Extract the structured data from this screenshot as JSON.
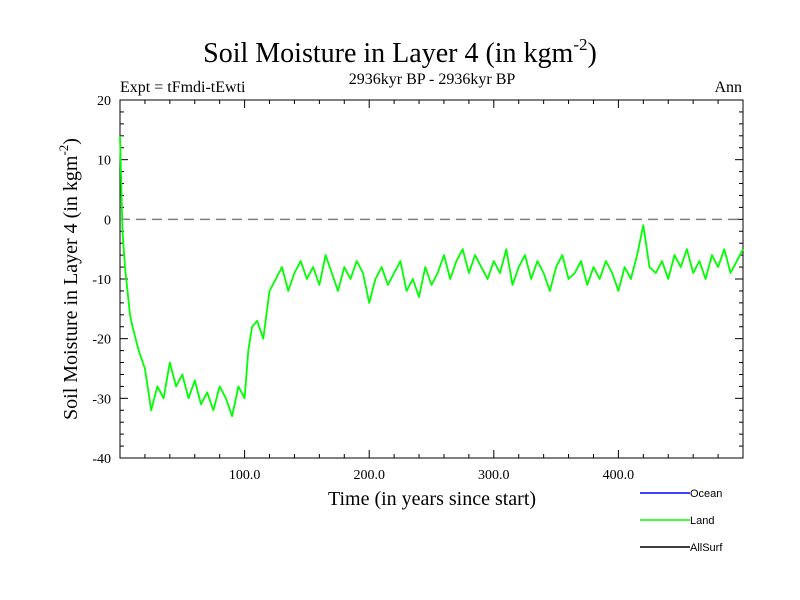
{
  "chart_data": {
    "type": "line",
    "title": "Soil Moisture in Layer 4 (in kgm",
    "title_sup": "-2",
    "title_close": ")",
    "subtitle_left": "Expt = tFmdi-tEwti",
    "subtitle_center": "2936kyr BP - 2936kyr BP",
    "subtitle_right": "Ann",
    "xlabel": "Time (in years since start)",
    "ylabel": "Soil Moisture in Layer 4 (in kgm",
    "ylabel_sup": "-2",
    "ylabel_close": ")",
    "xlim": [
      0,
      500
    ],
    "ylim": [
      -40,
      20
    ],
    "x_ticks": [
      100,
      200,
      300,
      400
    ],
    "x_tick_labels": [
      "100.0",
      "200.0",
      "300.0",
      "400.0"
    ],
    "y_ticks": [
      -40,
      -30,
      -20,
      -10,
      0,
      10,
      20
    ],
    "y_tick_labels": [
      "-40",
      "-30",
      "-20",
      "-10",
      "0",
      "10",
      "20"
    ],
    "reference_line": {
      "y": 0,
      "style": "dashed",
      "color": "#808080"
    },
    "legend": [
      {
        "name": "Ocean",
        "color": "#0000ff"
      },
      {
        "name": "Land",
        "color": "#00ff00"
      },
      {
        "name": "AllSurf",
        "color": "#000000"
      }
    ],
    "series": [
      {
        "name": "Land",
        "color": "#00ff00",
        "x": [
          0,
          2,
          4,
          6,
          8,
          10,
          15,
          20,
          25,
          30,
          35,
          40,
          45,
          50,
          55,
          60,
          65,
          70,
          75,
          80,
          85,
          90,
          95,
          100,
          103,
          106,
          110,
          115,
          120,
          125,
          130,
          135,
          140,
          145,
          150,
          155,
          160,
          165,
          170,
          175,
          180,
          185,
          190,
          195,
          200,
          205,
          210,
          215,
          220,
          225,
          230,
          235,
          240,
          245,
          250,
          255,
          260,
          265,
          270,
          275,
          280,
          285,
          290,
          295,
          300,
          305,
          310,
          315,
          320,
          325,
          330,
          335,
          340,
          345,
          350,
          355,
          360,
          365,
          370,
          375,
          380,
          385,
          390,
          395,
          400,
          405,
          410,
          415,
          420,
          425,
          430,
          435,
          440,
          445,
          450,
          455,
          460,
          465,
          470,
          475,
          480,
          485,
          490,
          495,
          500
        ],
        "values": [
          14,
          -2,
          -8,
          -12,
          -16,
          -18,
          -22,
          -25,
          -32,
          -28,
          -30,
          -24,
          -28,
          -26,
          -30,
          -27,
          -31,
          -29,
          -32,
          -28,
          -30,
          -33,
          -28,
          -30,
          -22,
          -18,
          -17,
          -20,
          -12,
          -10,
          -8,
          -12,
          -9,
          -7,
          -10,
          -8,
          -11,
          -6,
          -9,
          -12,
          -8,
          -10,
          -7,
          -9,
          -14,
          -10,
          -8,
          -11,
          -9,
          -7,
          -12,
          -10,
          -13,
          -8,
          -11,
          -9,
          -6,
          -10,
          -7,
          -5,
          -9,
          -6,
          -8,
          -10,
          -7,
          -9,
          -5,
          -11,
          -8,
          -6,
          -10,
          -7,
          -9,
          -12,
          -8,
          -6,
          -10,
          -9,
          -7,
          -11,
          -8,
          -10,
          -7,
          -9,
          -12,
          -8,
          -10,
          -6,
          -1,
          -8,
          -9,
          -7,
          -10,
          -6,
          -8,
          -5,
          -9,
          -7,
          -10,
          -6,
          -8,
          -5,
          -9,
          -7,
          -5
        ]
      }
    ]
  }
}
